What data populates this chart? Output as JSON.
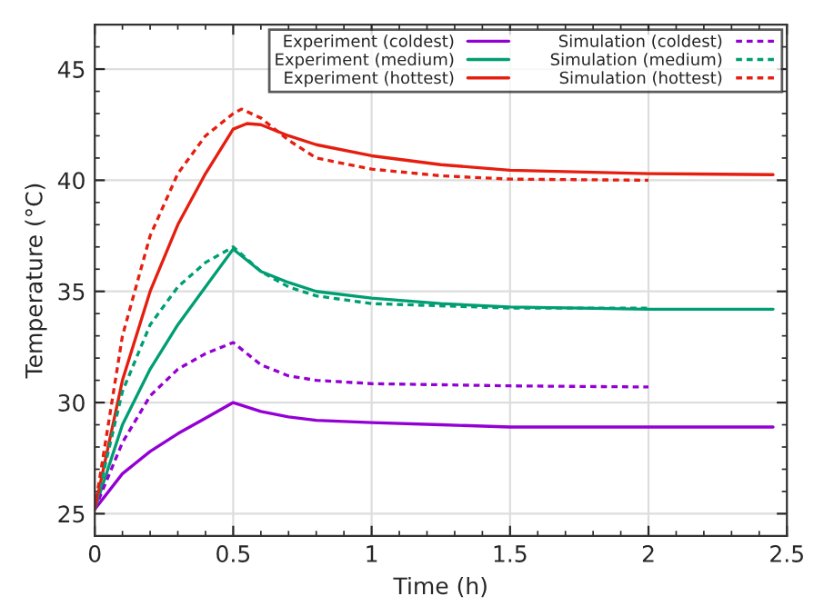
{
  "chart_data": {
    "type": "line",
    "xlabel": "Time (h)",
    "ylabel": "Temperature (°C)",
    "xlim": [
      0,
      2.5
    ],
    "ylim": [
      24,
      47
    ],
    "xticks": [
      0,
      0.5,
      1,
      1.5,
      2,
      2.5
    ],
    "yticks": [
      25,
      30,
      35,
      40,
      45
    ],
    "grid": true,
    "legend": "top right",
    "marker": "none",
    "series": [
      {
        "name": "Experiment (coldest)",
        "color": "#9400d3",
        "line_style": "solid",
        "x": [
          0,
          0.1,
          0.2,
          0.3,
          0.4,
          0.5,
          0.6,
          0.7,
          0.8,
          1.0,
          1.25,
          1.5,
          2.0,
          2.45
        ],
        "values": [
          25.2,
          26.8,
          27.8,
          28.6,
          29.3,
          30.0,
          29.6,
          29.35,
          29.2,
          29.1,
          29.0,
          28.9,
          28.9,
          28.9
        ]
      },
      {
        "name": "Experiment (medium)",
        "color": "#009e73",
        "line_style": "solid",
        "x": [
          0,
          0.1,
          0.2,
          0.3,
          0.4,
          0.5,
          0.6,
          0.7,
          0.8,
          1.0,
          1.25,
          1.5,
          2.0,
          2.45
        ],
        "values": [
          25.2,
          29.0,
          31.5,
          33.5,
          35.2,
          36.9,
          35.9,
          35.4,
          35.0,
          34.7,
          34.45,
          34.3,
          34.2,
          34.2
        ]
      },
      {
        "name": "Experiment (hottest)",
        "color": "#e51e10",
        "line_style": "solid",
        "x": [
          0,
          0.1,
          0.2,
          0.3,
          0.4,
          0.5,
          0.55,
          0.6,
          0.7,
          0.8,
          1.0,
          1.25,
          1.5,
          2.0,
          2.45
        ],
        "values": [
          25.2,
          31.0,
          35.0,
          38.0,
          40.3,
          42.3,
          42.55,
          42.5,
          42.0,
          41.6,
          41.1,
          40.7,
          40.45,
          40.3,
          40.25
        ]
      },
      {
        "name": "Simulation (coldest)",
        "color": "#9400d3",
        "line_style": "dashed",
        "x": [
          0,
          0.1,
          0.2,
          0.3,
          0.4,
          0.5,
          0.55,
          0.6,
          0.7,
          0.8,
          1.0,
          1.5,
          2.0
        ],
        "values": [
          25.2,
          28.2,
          30.3,
          31.5,
          32.2,
          32.7,
          32.2,
          31.7,
          31.2,
          31.0,
          30.85,
          30.75,
          30.7
        ]
      },
      {
        "name": "Simulation (medium)",
        "color": "#009e73",
        "line_style": "dashed",
        "x": [
          0,
          0.1,
          0.2,
          0.3,
          0.4,
          0.5,
          0.6,
          0.7,
          0.8,
          1.0,
          1.5,
          2.0
        ],
        "values": [
          25.2,
          30.5,
          33.5,
          35.2,
          36.3,
          37.0,
          35.9,
          35.2,
          34.8,
          34.45,
          34.25,
          34.25
        ]
      },
      {
        "name": "Simulation (hottest)",
        "color": "#e51e10",
        "line_style": "dashed",
        "x": [
          0,
          0.1,
          0.2,
          0.3,
          0.4,
          0.5,
          0.53,
          0.6,
          0.7,
          0.8,
          1.0,
          1.25,
          1.5,
          2.0
        ],
        "values": [
          25.2,
          33.0,
          37.5,
          40.3,
          42.0,
          43.0,
          43.2,
          42.8,
          41.8,
          41.0,
          40.5,
          40.2,
          40.05,
          40.0
        ]
      }
    ]
  }
}
